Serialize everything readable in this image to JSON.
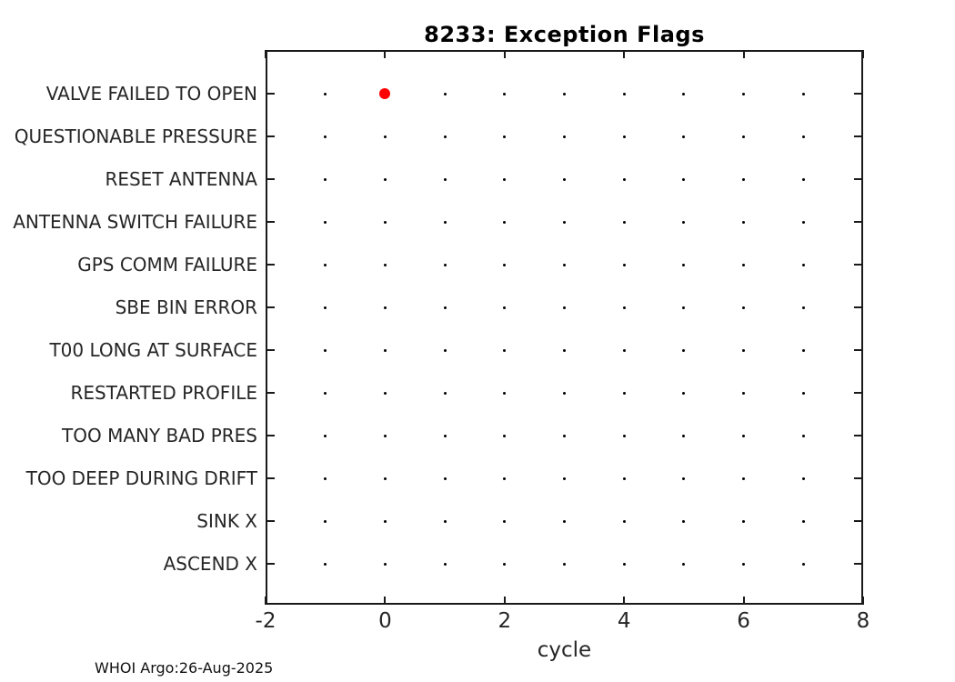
{
  "title": "8233: Exception Flags",
  "footer": "WHOI Argo:26-Aug-2025",
  "colors": {
    "axis": "#1a1a1a",
    "tick_text": "#262626",
    "grid_marker": "#000000",
    "event_marker": "#ff0000"
  },
  "chart_data": {
    "type": "scatter",
    "title": "8233: Exception Flags",
    "xlabel": "cycle",
    "ylabel": "",
    "xlim": [
      -2,
      8
    ],
    "x_ticks": [
      -2,
      0,
      2,
      4,
      6,
      8
    ],
    "grid": false,
    "categories": [
      "VALVE FAILED TO OPEN",
      "QUESTIONABLE PRESSURE",
      "RESET ANTENNA",
      "ANTENNA SWITCH FAILURE",
      "GPS COMM FAILURE",
      "SBE BIN ERROR",
      "T00 LONG AT SURFACE",
      "RESTARTED PROFILE",
      "TOO MANY BAD PRES",
      "TOO DEEP DURING DRIFT",
      "SINK X",
      "ASCEND X"
    ],
    "series": [
      {
        "name": "placeholder-grid-dots",
        "marker": "small-dot",
        "color": "#000000",
        "cycles": [
          -1,
          0,
          1,
          2,
          3,
          4,
          5,
          6,
          7
        ],
        "applies_to": "all-categories"
      },
      {
        "name": "exception-events",
        "marker": "filled-circle",
        "color": "#ff0000",
        "points": [
          {
            "category": "VALVE FAILED TO OPEN",
            "cycle": 0
          }
        ]
      }
    ]
  }
}
